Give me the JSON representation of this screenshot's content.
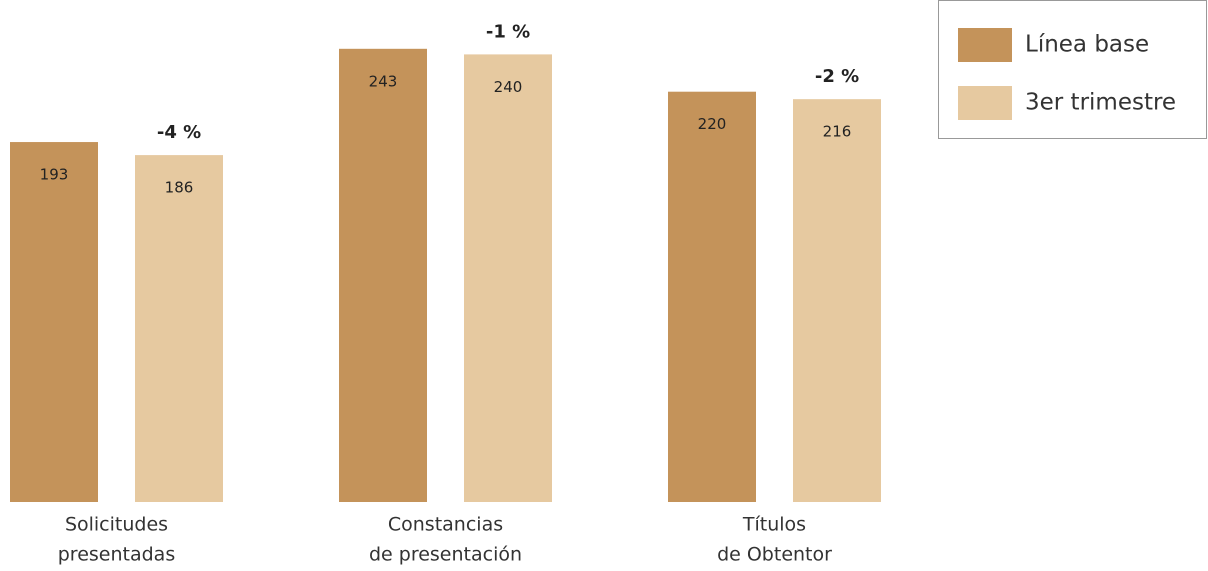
{
  "chart_data": {
    "type": "bar",
    "categories": [
      [
        "Solicitudes",
        "presentadas"
      ],
      [
        "Constancias",
        "de presentación"
      ],
      [
        "Títulos",
        "de Obtentor"
      ]
    ],
    "series": [
      {
        "name": "Línea base",
        "color": "#c4935a",
        "values": [
          193,
          243,
          220
        ]
      },
      {
        "name": "3er trimestre",
        "color": "#e6c9a0",
        "values": [
          186,
          240,
          216
        ]
      }
    ],
    "annotations": [
      "-4 %",
      "-1 %",
      "-2 %"
    ],
    "legend": "top-right"
  }
}
